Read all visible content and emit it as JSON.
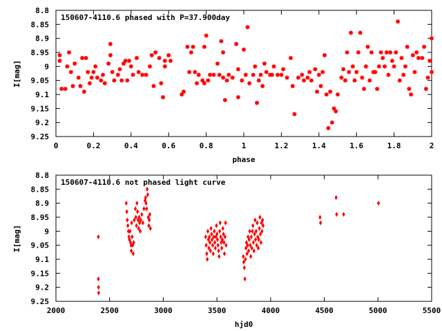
{
  "chart_data": [
    {
      "type": "scatter",
      "title": "150607-4110.6 phased with P=37.900day",
      "xlabel": "phase",
      "ylabel": "I[mag]",
      "xlim": [
        0,
        2
      ],
      "ylim": [
        8.8,
        9.25
      ],
      "y_inverted": true,
      "grid": false,
      "legend": "none",
      "marker_color": "#ff0000",
      "xticks": [
        "0",
        "0.2",
        "0.4",
        "0.6",
        "0.8",
        "1",
        "1.2",
        "1.4",
        "1.6",
        "1.8",
        "2"
      ],
      "yticks": [
        "8.8",
        "8.85",
        "8.9",
        "8.95",
        "9",
        "9.05",
        "9.1",
        "9.15",
        "9.2",
        "9.25"
      ],
      "points": [
        [
          0.02,
          8.96
        ],
        [
          0.02,
          8.98
        ],
        [
          0.03,
          9.08
        ],
        [
          0.05,
          9.08
        ],
        [
          0.06,
          9.0
        ],
        [
          0.07,
          8.95
        ],
        [
          0.08,
          9.02
        ],
        [
          0.09,
          9.07
        ],
        [
          0.1,
          8.99
        ],
        [
          0.12,
          9.04
        ],
        [
          0.13,
          9.07
        ],
        [
          0.14,
          8.97
        ],
        [
          0.15,
          9.09
        ],
        [
          0.16,
          8.97
        ],
        [
          0.17,
          9.02
        ],
        [
          0.18,
          9.06
        ],
        [
          0.19,
          9.04
        ],
        [
          0.2,
          9.02
        ],
        [
          0.21,
          9.0
        ],
        [
          0.22,
          9.04
        ],
        [
          0.24,
          9.05
        ],
        [
          0.25,
          9.03
        ],
        [
          0.26,
          9.06
        ],
        [
          0.28,
          8.99
        ],
        [
          0.29,
          8.96
        ],
        [
          0.29,
          8.92
        ],
        [
          0.3,
          9.02
        ],
        [
          0.31,
          9.05
        ],
        [
          0.33,
          9.03
        ],
        [
          0.34,
          9.01
        ],
        [
          0.35,
          9.05
        ],
        [
          0.36,
          8.99
        ],
        [
          0.37,
          8.98
        ],
        [
          0.38,
          9.05
        ],
        [
          0.39,
          8.98
        ],
        [
          0.4,
          9.0
        ],
        [
          0.41,
          9.03
        ],
        [
          0.43,
          8.97
        ],
        [
          0.44,
          9.02
        ],
        [
          0.46,
          9.03
        ],
        [
          0.48,
          9.03
        ],
        [
          0.5,
          9.0
        ],
        [
          0.51,
          8.96
        ],
        [
          0.52,
          9.07
        ],
        [
          0.53,
          8.95
        ],
        [
          0.55,
          8.97
        ],
        [
          0.56,
          9.06
        ],
        [
          0.57,
          9.11
        ],
        [
          0.58,
          8.98
        ],
        [
          0.58,
          9.0
        ],
        [
          0.6,
          8.96
        ],
        [
          0.61,
          8.98
        ],
        [
          0.67,
          9.1
        ],
        [
          0.68,
          9.09
        ],
        [
          0.7,
          8.93
        ],
        [
          0.71,
          9.02
        ],
        [
          0.72,
          8.95
        ],
        [
          0.73,
          8.93
        ],
        [
          0.74,
          9.02
        ],
        [
          0.75,
          9.06
        ],
        [
          0.76,
          9.03
        ],
        [
          0.78,
          9.05
        ],
        [
          0.79,
          8.93
        ],
        [
          0.79,
          9.06
        ],
        [
          0.8,
          8.89
        ],
        [
          0.81,
          9.05
        ],
        [
          0.82,
          9.03
        ],
        [
          0.84,
          9.03
        ],
        [
          0.86,
          8.99
        ],
        [
          0.87,
          9.03
        ],
        [
          0.88,
          8.91
        ],
        [
          0.89,
          9.04
        ],
        [
          0.89,
          8.95
        ],
        [
          0.9,
          9.12
        ],
        [
          0.91,
          9.05
        ],
        [
          0.92,
          9.03
        ],
        [
          0.94,
          9.04
        ],
        [
          0.96,
          8.92
        ],
        [
          0.97,
          9.01
        ],
        [
          0.97,
          9.11
        ],
        [
          0.99,
          9.05
        ],
        [
          1.0,
          8.94
        ],
        [
          1.01,
          9.03
        ],
        [
          1.02,
          8.86
        ],
        [
          1.03,
          9.06
        ],
        [
          1.05,
          9.03
        ],
        [
          1.06,
          9.0
        ],
        [
          1.07,
          9.13
        ],
        [
          1.08,
          9.05
        ],
        [
          1.09,
          9.03
        ],
        [
          1.1,
          9.07
        ],
        [
          1.11,
          8.99
        ],
        [
          1.12,
          9.02
        ],
        [
          1.14,
          9.03
        ],
        [
          1.15,
          9.03
        ],
        [
          1.16,
          9.0
        ],
        [
          1.18,
          9.03
        ],
        [
          1.2,
          9.03
        ],
        [
          1.21,
          9.01
        ],
        [
          1.23,
          9.04
        ],
        [
          1.25,
          8.97
        ],
        [
          1.26,
          9.07
        ],
        [
          1.27,
          9.17
        ],
        [
          1.29,
          9.04
        ],
        [
          1.31,
          9.03
        ],
        [
          1.32,
          9.05
        ],
        [
          1.34,
          9.04
        ],
        [
          1.35,
          9.02
        ],
        [
          1.36,
          9.05
        ],
        [
          1.38,
          9.01
        ],
        [
          1.39,
          9.09
        ],
        [
          1.4,
          9.03
        ],
        [
          1.41,
          9.07
        ],
        [
          1.42,
          9.02
        ],
        [
          1.43,
          8.96
        ],
        [
          1.44,
          9.1
        ],
        [
          1.45,
          9.22
        ],
        [
          1.46,
          9.09
        ],
        [
          1.47,
          9.2
        ],
        [
          1.48,
          9.15
        ],
        [
          1.49,
          9.16
        ],
        [
          1.5,
          9.1
        ],
        [
          1.52,
          9.04
        ],
        [
          1.53,
          9.01
        ],
        [
          1.54,
          9.05
        ],
        [
          1.55,
          8.95
        ],
        [
          1.56,
          9.02
        ],
        [
          1.57,
          8.88
        ],
        [
          1.58,
          9.0
        ],
        [
          1.59,
          9.05
        ],
        [
          1.6,
          9.02
        ],
        [
          1.61,
          8.95
        ],
        [
          1.62,
          8.88
        ],
        [
          1.63,
          9.04
        ],
        [
          1.64,
          9.08
        ],
        [
          1.65,
          9.0
        ],
        [
          1.66,
          8.93
        ],
        [
          1.67,
          9.05
        ],
        [
          1.68,
          8.95
        ],
        [
          1.69,
          9.02
        ],
        [
          1.7,
          9.02
        ],
        [
          1.71,
          9.08
        ],
        [
          1.72,
          9.0
        ],
        [
          1.73,
          8.95
        ],
        [
          1.74,
          8.97
        ],
        [
          1.75,
          9.0
        ],
        [
          1.76,
          8.95
        ],
        [
          1.77,
          9.03
        ],
        [
          1.78,
          8.95
        ],
        [
          1.79,
          8.98
        ],
        [
          1.8,
          9.0
        ],
        [
          1.81,
          8.95
        ],
        [
          1.82,
          8.84
        ],
        [
          1.83,
          9.05
        ],
        [
          1.84,
          8.97
        ],
        [
          1.85,
          9.03
        ],
        [
          1.86,
          9.0
        ],
        [
          1.87,
          8.93
        ],
        [
          1.88,
          9.08
        ],
        [
          1.89,
          9.1
        ],
        [
          1.9,
          8.96
        ],
        [
          1.91,
          9.02
        ],
        [
          1.92,
          8.95
        ],
        [
          1.93,
          8.97
        ],
        [
          1.95,
          8.97
        ],
        [
          1.96,
          8.93
        ],
        [
          1.97,
          9.08
        ],
        [
          1.98,
          9.04
        ],
        [
          1.99,
          8.98
        ],
        [
          2.0,
          8.9
        ],
        [
          2.0,
          9.02
        ]
      ]
    },
    {
      "type": "scatter",
      "title": "150607-4110.6 not phased light curve",
      "xlabel": "hjd0",
      "ylabel": "I[mag]",
      "xlim": [
        2000,
        5500
      ],
      "ylim": [
        8.8,
        9.25
      ],
      "y_inverted": true,
      "grid": false,
      "legend": "none",
      "marker_color": "#ff0000",
      "xticks": [
        "2000",
        "2500",
        "3000",
        "3500",
        "4000",
        "4500",
        "5000",
        "5500"
      ],
      "yticks": [
        "8.8",
        "8.85",
        "8.9",
        "8.95",
        "9",
        "9.05",
        "9.1",
        "9.15",
        "9.2",
        "9.25"
      ],
      "points": [
        [
          2395,
          9.02
        ],
        [
          2395,
          9.17
        ],
        [
          2397,
          9.2
        ],
        [
          2398,
          9.22
        ],
        [
          2655,
          8.9
        ],
        [
          2660,
          8.93
        ],
        [
          2665,
          8.96
        ],
        [
          2670,
          8.98
        ],
        [
          2675,
          9.0
        ],
        [
          2680,
          9.02
        ],
        [
          2685,
          9.03
        ],
        [
          2690,
          9.0
        ],
        [
          2695,
          9.04
        ],
        [
          2700,
          9.05
        ],
        [
          2702,
          9.07
        ],
        [
          2705,
          8.97
        ],
        [
          2710,
          9.02
        ],
        [
          2715,
          9.05
        ],
        [
          2720,
          9.08
        ],
        [
          2725,
          9.04
        ],
        [
          2730,
          8.96
        ],
        [
          2740,
          8.92
        ],
        [
          2745,
          8.95
        ],
        [
          2750,
          8.98
        ],
        [
          2755,
          8.9
        ],
        [
          2760,
          8.93
        ],
        [
          2765,
          8.96
        ],
        [
          2770,
          8.99
        ],
        [
          2775,
          8.95
        ],
        [
          2780,
          8.97
        ],
        [
          2785,
          9.0
        ],
        [
          2790,
          8.96
        ],
        [
          2800,
          8.94
        ],
        [
          2810,
          8.97
        ],
        [
          2820,
          8.92
        ],
        [
          2830,
          8.89
        ],
        [
          2835,
          8.88
        ],
        [
          2840,
          8.9
        ],
        [
          2845,
          8.92
        ],
        [
          2850,
          8.85
        ],
        [
          2855,
          8.87
        ],
        [
          2860,
          8.95
        ],
        [
          2865,
          8.98
        ],
        [
          2870,
          8.96
        ],
        [
          2875,
          8.94
        ],
        [
          2880,
          8.99
        ],
        [
          3395,
          9.02
        ],
        [
          3400,
          9.05
        ],
        [
          3405,
          9.08
        ],
        [
          3410,
          9.1
        ],
        [
          3415,
          9.0
        ],
        [
          3420,
          9.03
        ],
        [
          3425,
          9.06
        ],
        [
          3430,
          9.02
        ],
        [
          3435,
          9.04
        ],
        [
          3440,
          9.07
        ],
        [
          3445,
          8.99
        ],
        [
          3450,
          9.01
        ],
        [
          3455,
          9.03
        ],
        [
          3460,
          9.05
        ],
        [
          3465,
          9.08
        ],
        [
          3470,
          9.02
        ],
        [
          3475,
          9.0
        ],
        [
          3480,
          9.04
        ],
        [
          3485,
          9.06
        ],
        [
          3490,
          9.02
        ],
        [
          3495,
          8.98
        ],
        [
          3500,
          9.01
        ],
        [
          3505,
          9.03
        ],
        [
          3510,
          9.05
        ],
        [
          3515,
          9.07
        ],
        [
          3520,
          9.09
        ],
        [
          3525,
          9.0
        ],
        [
          3530,
          8.97
        ],
        [
          3535,
          9.02
        ],
        [
          3540,
          9.04
        ],
        [
          3545,
          9.06
        ],
        [
          3550,
          9.03
        ],
        [
          3555,
          8.99
        ],
        [
          3560,
          9.01
        ],
        [
          3565,
          9.04
        ],
        [
          3570,
          9.08
        ],
        [
          3575,
          9.02
        ],
        [
          3580,
          8.97
        ],
        [
          3585,
          9.05
        ],
        [
          3745,
          9.09
        ],
        [
          3750,
          9.11
        ],
        [
          3755,
          9.13
        ],
        [
          3760,
          9.17
        ],
        [
          3765,
          9.1
        ],
        [
          3770,
          9.06
        ],
        [
          3775,
          9.04
        ],
        [
          3780,
          9.08
        ],
        [
          3785,
          9.05
        ],
        [
          3790,
          9.02
        ],
        [
          3795,
          9.07
        ],
        [
          3800,
          9.03
        ],
        [
          3805,
          9.0
        ],
        [
          3810,
          9.05
        ],
        [
          3815,
          9.09
        ],
        [
          3820,
          9.02
        ],
        [
          3825,
          9.06
        ],
        [
          3830,
          9.0
        ],
        [
          3835,
          8.98
        ],
        [
          3840,
          9.04
        ],
        [
          3845,
          9.07
        ],
        [
          3850,
          9.01
        ],
        [
          3855,
          8.96
        ],
        [
          3860,
          9.03
        ],
        [
          3865,
          9.0
        ],
        [
          3870,
          9.05
        ],
        [
          3875,
          8.97
        ],
        [
          3880,
          9.02
        ],
        [
          3885,
          9.06
        ],
        [
          3890,
          9.03
        ],
        [
          3895,
          8.99
        ],
        [
          3900,
          8.95
        ],
        [
          3905,
          9.01
        ],
        [
          3910,
          9.04
        ],
        [
          3915,
          8.97
        ],
        [
          3920,
          9.0
        ],
        [
          3925,
          8.96
        ],
        [
          3930,
          8.98
        ],
        [
          4460,
          8.95
        ],
        [
          4465,
          8.97
        ],
        [
          4610,
          8.88
        ],
        [
          4615,
          8.94
        ],
        [
          4680,
          8.94
        ],
        [
          5005,
          8.9
        ]
      ]
    }
  ]
}
